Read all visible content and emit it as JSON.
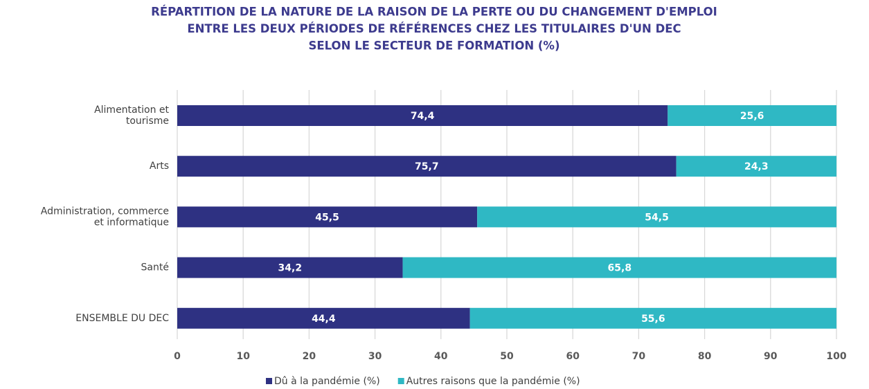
{
  "chart_data": {
    "type": "stacked-barh",
    "title": [
      "RÉPARTITION DE LA NATURE DE LA RAISON DE LA PERTE OU DU CHANGEMENT D'EMPLOI",
      "ENTRE LES DEUX PÉRIODES DE RÉFÉRENCES CHEZ LES TITULAIRES D'UN DEC",
      "SELON LE SECTEUR DE FORMATION (%)"
    ],
    "categories": [
      "Alimentation et\ntourisme",
      "Arts",
      "Administration, commerce\net informatique",
      "Santé",
      "ENSEMBLE DU DEC"
    ],
    "series": [
      {
        "name": "Dû à la pandémie (%)",
        "color": "#2e3182",
        "values": [
          74.4,
          75.7,
          45.5,
          34.2,
          44.4
        ],
        "value_labels": [
          "74,4",
          "75,7",
          "45,5",
          "34,2",
          "44,4"
        ]
      },
      {
        "name": "Autres raisons que la pandémie (%)",
        "color": "#2fb8c4",
        "values": [
          25.6,
          24.3,
          54.5,
          65.8,
          55.6
        ],
        "value_labels": [
          "25,6",
          "24,3",
          "54,5",
          "65,8",
          "55,6"
        ]
      }
    ],
    "xlim": [
      0,
      100
    ],
    "xticks": [
      0,
      10,
      20,
      30,
      40,
      50,
      60,
      70,
      80,
      90,
      100
    ],
    "grid": true,
    "legend": "bottom"
  }
}
